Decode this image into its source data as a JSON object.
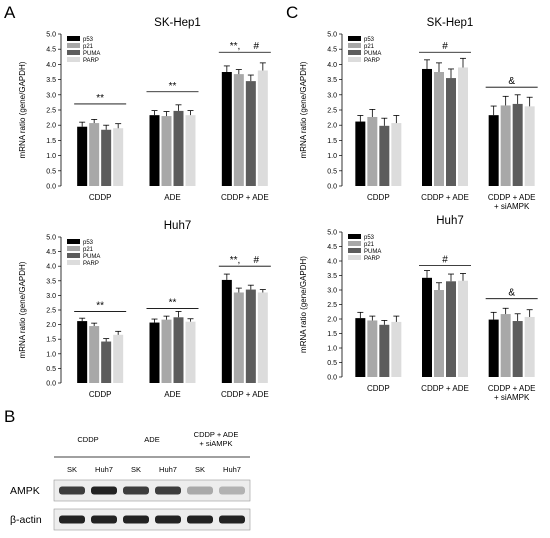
{
  "panel_labels": {
    "a": "A",
    "b": "B",
    "c": "C"
  },
  "legend": [
    {
      "name": "p53",
      "color": "#000000"
    },
    {
      "name": "p21",
      "color": "#a8a8a8"
    },
    {
      "name": "PUMA",
      "color": "#5c5c5c"
    },
    {
      "name": "PARP",
      "color": "#dcdcdc"
    }
  ],
  "chart_data": [
    {
      "type": "bar",
      "panel": "A",
      "title": "SK-Hep1",
      "ylabel": "mRNA ratio  (gene/GAPDH)",
      "ylim": [
        0,
        5
      ],
      "yticks": [
        "0.0",
        "0.5",
        "1.0",
        "1.5",
        "2.0",
        "2.5",
        "3.0",
        "3.5",
        "4.0",
        "4.5",
        "5.0"
      ],
      "categories": [
        "CDDP",
        "ADE",
        "CDDP + ADE"
      ],
      "series": [
        {
          "name": "p53",
          "values": [
            1.95,
            2.33,
            3.75
          ],
          "errors": [
            0.15,
            0.15,
            0.2
          ]
        },
        {
          "name": "p21",
          "values": [
            2.07,
            2.3,
            3.68
          ],
          "errors": [
            0.12,
            0.15,
            0.15
          ]
        },
        {
          "name": "PUMA",
          "values": [
            1.85,
            2.47,
            3.45
          ],
          "errors": [
            0.15,
            0.2,
            0.2
          ]
        },
        {
          "name": "PARP",
          "values": [
            1.9,
            2.33,
            3.8
          ],
          "errors": [
            0.15,
            0.15,
            0.25
          ]
        }
      ],
      "annotations": [
        {
          "text": "**",
          "category": 0,
          "y": 2.7,
          "line": true
        },
        {
          "text": "**",
          "category": 1,
          "y": 3.1,
          "line": true
        },
        {
          "text": "**,",
          "category": 2,
          "y": 4.4,
          "line": true,
          "offset": -0.3
        },
        {
          "text": "#",
          "category": 2,
          "y": 4.4,
          "line": false,
          "offset": 0.35
        }
      ]
    },
    {
      "type": "bar",
      "panel": "A",
      "title": "Huh7",
      "ylabel": "mRNA ratio  (gene/GAPDH)",
      "ylim": [
        0,
        5
      ],
      "yticks": [
        "0.0",
        "0.5",
        "1.0",
        "1.5",
        "2.0",
        "2.5",
        "3.0",
        "3.5",
        "4.0",
        "4.5",
        "5.0"
      ],
      "categories": [
        "CDDP",
        "ADE",
        "CDDP + ADE"
      ],
      "series": [
        {
          "name": "p53",
          "values": [
            2.12,
            2.07,
            3.53
          ],
          "errors": [
            0.1,
            0.12,
            0.2
          ]
        },
        {
          "name": "p21",
          "values": [
            1.95,
            2.17,
            3.1
          ],
          "errors": [
            0.1,
            0.12,
            0.15
          ]
        },
        {
          "name": "PUMA",
          "values": [
            1.42,
            2.25,
            3.2
          ],
          "errors": [
            0.1,
            0.2,
            0.15
          ]
        },
        {
          "name": "PARP",
          "values": [
            1.65,
            2.1,
            3.1
          ],
          "errors": [
            0.12,
            0.1,
            0.1
          ]
        }
      ],
      "annotations": [
        {
          "text": "**",
          "category": 0,
          "y": 2.45,
          "line": true
        },
        {
          "text": "**",
          "category": 1,
          "y": 2.55,
          "line": true
        },
        {
          "text": "**,",
          "category": 2,
          "y": 4.0,
          "line": true,
          "offset": -0.3
        },
        {
          "text": "#",
          "category": 2,
          "y": 4.0,
          "line": false,
          "offset": 0.35
        }
      ]
    },
    {
      "type": "bar",
      "panel": "C",
      "title": "SK-Hep1",
      "ylabel": "mRNA ratio  (gene/GAPDH)",
      "ylim": [
        0,
        5
      ],
      "yticks": [
        "0.0",
        "0.5",
        "1.0",
        "1.5",
        "2.0",
        "2.5",
        "3.0",
        "3.5",
        "4.0",
        "4.5",
        "5.0"
      ],
      "categories": [
        "CDDP",
        "CDDP + ADE",
        "CDDP + ADE\n+ siAMPK"
      ],
      "series": [
        {
          "name": "p53",
          "values": [
            2.12,
            3.85,
            2.33
          ],
          "errors": [
            0.2,
            0.3,
            0.3
          ]
        },
        {
          "name": "p21",
          "values": [
            2.27,
            3.75,
            2.65
          ],
          "errors": [
            0.25,
            0.3,
            0.3
          ]
        },
        {
          "name": "PUMA",
          "values": [
            1.98,
            3.55,
            2.7
          ],
          "errors": [
            0.25,
            0.3,
            0.3
          ]
        },
        {
          "name": "PARP",
          "values": [
            2.07,
            3.9,
            2.62
          ],
          "errors": [
            0.25,
            0.3,
            0.3
          ]
        }
      ],
      "annotations": [
        {
          "text": "#",
          "category": 1,
          "y": 4.4,
          "line": true
        },
        {
          "text": "&",
          "category": 2,
          "y": 3.25,
          "line": true
        }
      ]
    },
    {
      "type": "bar",
      "panel": "C",
      "title": "Huh7",
      "ylabel": "mRNA ratio  (gene/GAPDH)",
      "ylim": [
        0,
        5
      ],
      "yticks": [
        "0.0",
        "0.5",
        "1.0",
        "1.5",
        "2.0",
        "2.5",
        "3.0",
        "3.5",
        "4.0",
        "4.5",
        "5.0"
      ],
      "categories": [
        "CDDP",
        "CDDP + ADE",
        "CDDP + ADE\n+ siAMPK"
      ],
      "series": [
        {
          "name": "p53",
          "values": [
            2.03,
            3.42,
            1.98
          ],
          "errors": [
            0.2,
            0.25,
            0.25
          ]
        },
        {
          "name": "p21",
          "values": [
            1.95,
            3.0,
            2.17
          ],
          "errors": [
            0.15,
            0.25,
            0.2
          ]
        },
        {
          "name": "PUMA",
          "values": [
            1.8,
            3.3,
            1.93
          ],
          "errors": [
            0.15,
            0.25,
            0.25
          ]
        },
        {
          "name": "PARP",
          "values": [
            1.9,
            3.32,
            2.07
          ],
          "errors": [
            0.2,
            0.25,
            0.25
          ]
        }
      ],
      "annotations": [
        {
          "text": "#",
          "category": 1,
          "y": 3.85,
          "line": true
        },
        {
          "text": "&",
          "category": 2,
          "y": 2.7,
          "line": true
        }
      ]
    }
  ],
  "blot": {
    "groups": [
      "CDDP",
      "ADE",
      "CDDP + ADE\n+ siAMPK"
    ],
    "lanes": [
      "SK",
      "Huh7",
      "SK",
      "Huh7",
      "SK",
      "Huh7"
    ],
    "rows": [
      {
        "label": "AMPK",
        "intensities": [
          0.85,
          0.95,
          0.85,
          0.85,
          0.35,
          0.3
        ]
      },
      {
        "label": "β-actin",
        "intensities": [
          0.95,
          0.95,
          0.95,
          0.95,
          0.95,
          0.95
        ]
      }
    ]
  }
}
